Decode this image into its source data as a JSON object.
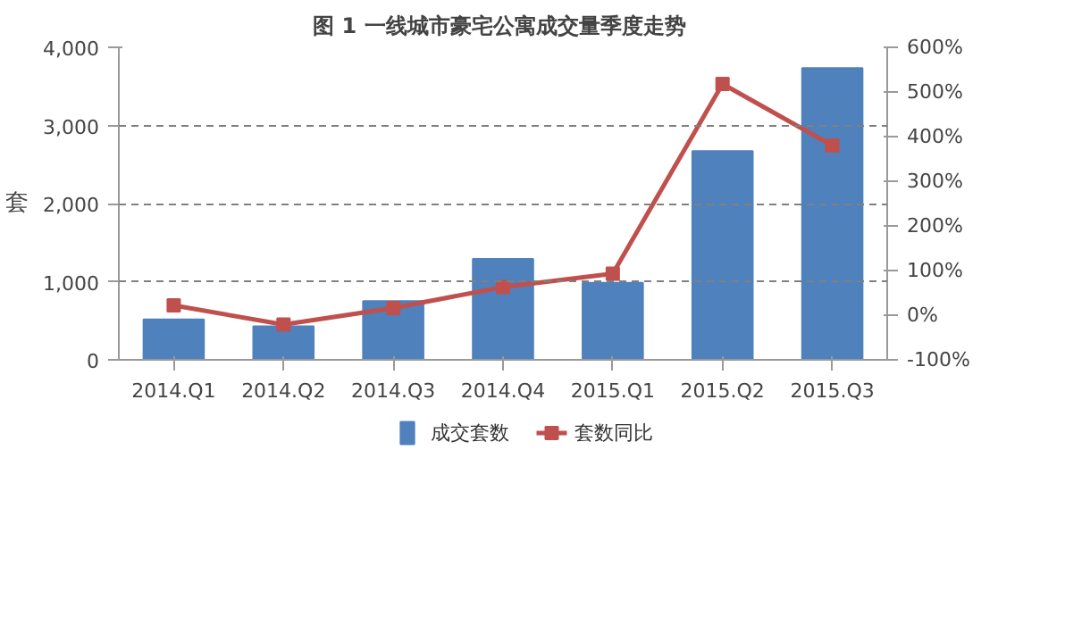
{
  "chart_data": {
    "type": "bar",
    "title": "图 1  一线城市豪宅公寓成交量季度走势",
    "ylabel": "套",
    "categories": [
      "2014.Q1",
      "2014.Q2",
      "2014.Q3",
      "2014.Q4",
      "2015.Q1",
      "2015.Q2",
      "2015.Q3"
    ],
    "series": [
      {
        "name": "成交套数",
        "color": "#4f81bd",
        "values": [
          517,
          430,
          751,
          1292,
          986,
          2672,
          3734
        ]
      },
      {
        "name": "套数同比",
        "type": "line",
        "axis": "y2",
        "color": "#c0504d",
        "values": [
          22,
          -21,
          16,
          63,
          93,
          518,
          380
        ]
      }
    ],
    "ylim": [
      0,
      4000
    ],
    "yticks": [
      {
        "value": 0,
        "label": "0"
      },
      {
        "value": 1000,
        "label": "1,000"
      },
      {
        "value": 2000,
        "label": "2,000"
      },
      {
        "value": 3000,
        "label": "3,000"
      },
      {
        "value": 4000,
        "label": "4,000"
      }
    ],
    "y2lim": [
      -100,
      600
    ],
    "y2ticks": [
      {
        "value": -100,
        "label": "-100%"
      },
      {
        "value": 0,
        "label": "0%"
      },
      {
        "value": 100,
        "label": "100%"
      },
      {
        "value": 200,
        "label": "200%"
      },
      {
        "value": 300,
        "label": "300%"
      },
      {
        "value": 400,
        "label": "400%"
      },
      {
        "value": 500,
        "label": "500%"
      },
      {
        "value": 600,
        "label": "600%"
      }
    ],
    "grid": "y",
    "legend": "bottom",
    "marker": "square",
    "line_style": "solid"
  }
}
